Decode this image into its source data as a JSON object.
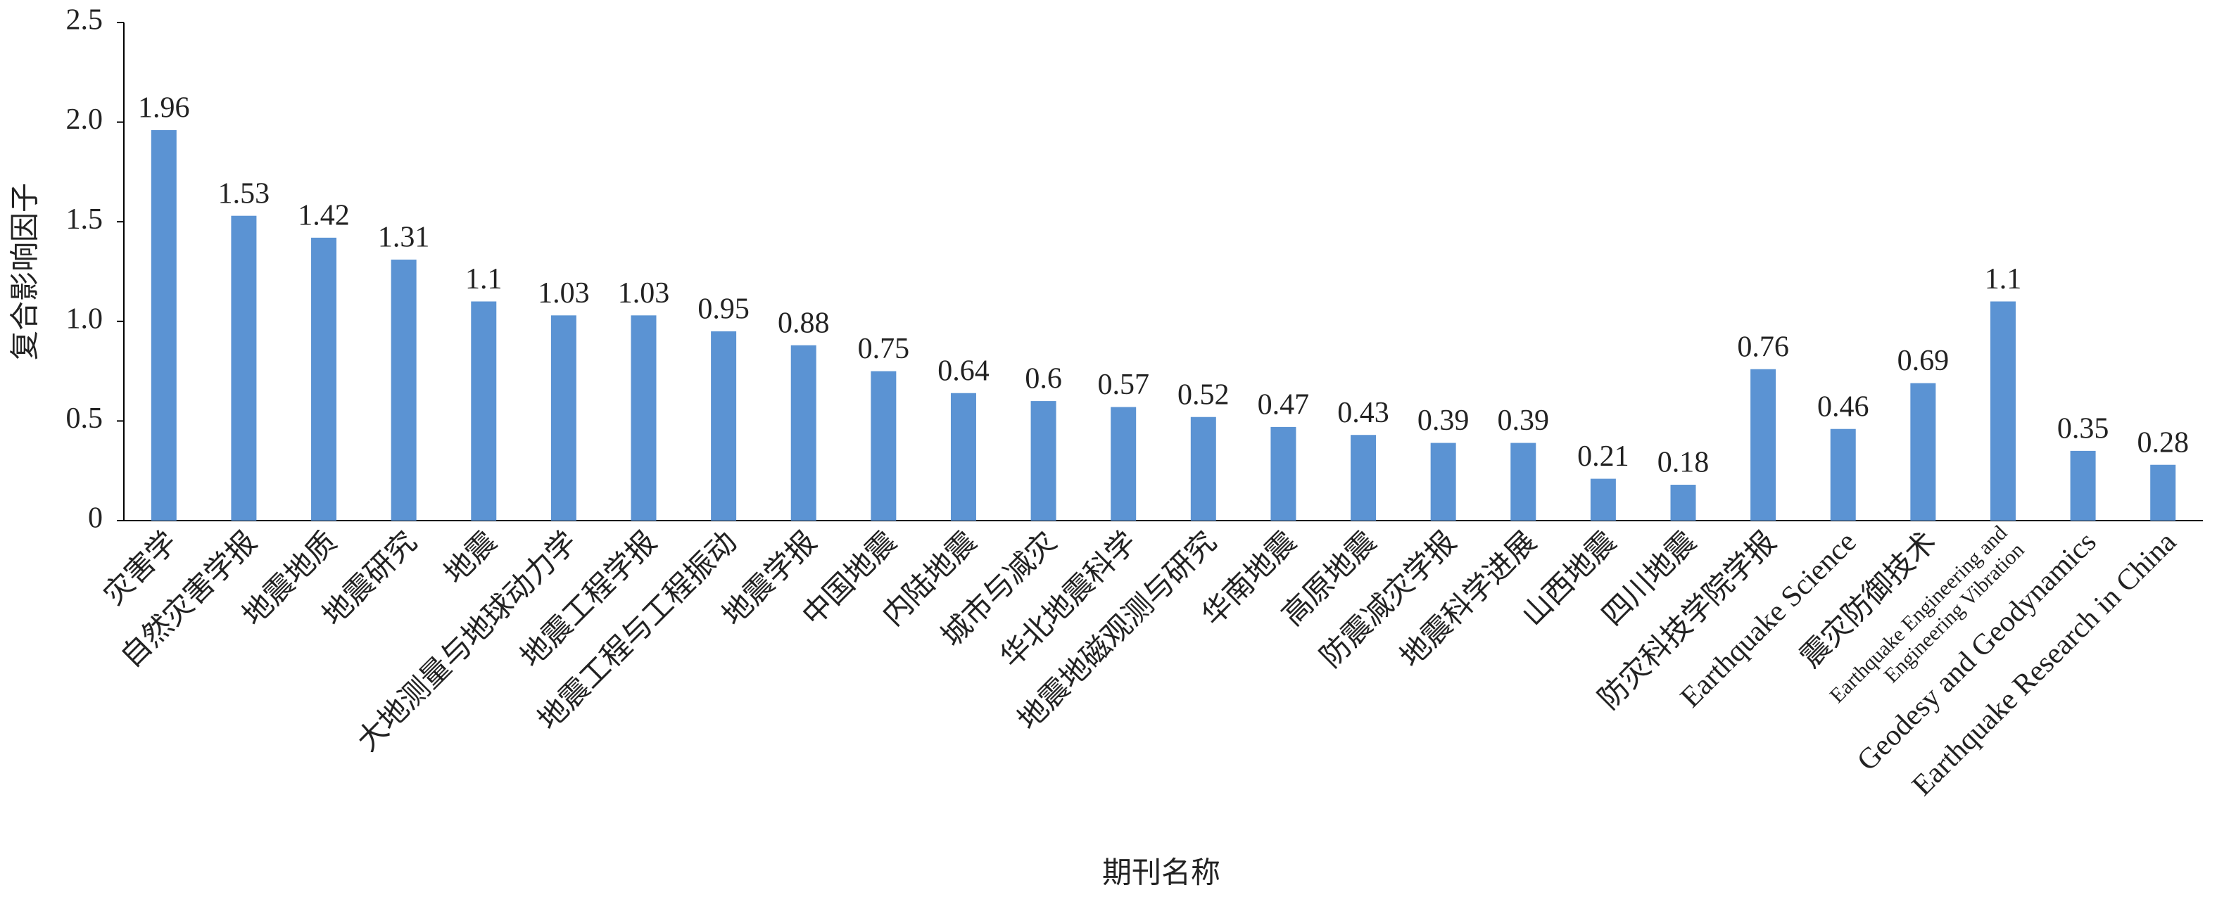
{
  "chart_data": {
    "type": "bar",
    "x_label": "期刊名称",
    "y_label": "复合影响因子",
    "categories": [
      "灾害学",
      "自然灾害学报",
      "地震地质",
      "地震研究",
      "地震",
      "大地测量与地球动力学",
      "地震工程学报",
      "地震工程与工程振动",
      "地震学报",
      "中国地震",
      "内陆地震",
      "城市与减灾",
      "华北地震科学",
      "地震地磁观测与研究",
      "华南地震",
      "高原地震",
      "防震减灾学报",
      "地震科学进展",
      "山西地震",
      "四川地震",
      "防灾科技学院学报",
      "Earthquake Science",
      "震灾防御技术",
      "Earthquake Engineering and\nEngineering Vibration",
      "Geodesy and Geodynamics",
      "Earthquake Research in China"
    ],
    "values": [
      1.96,
      1.53,
      1.42,
      1.31,
      1.1,
      1.03,
      1.03,
      0.95,
      0.88,
      0.75,
      0.64,
      0.6,
      0.57,
      0.52,
      0.47,
      0.43,
      0.39,
      0.39,
      0.21,
      0.18,
      0.76,
      0.46,
      0.69,
      1.1,
      0.35,
      0.28
    ],
    "color": "#5b93d3",
    "ylim": [
      0,
      2.5
    ],
    "yticks": [
      0,
      0.5,
      {
        "value": 1,
        "label": "1.0"
      },
      1.5,
      {
        "value": 2,
        "label": "2.0"
      },
      2.5
    ],
    "grid": false
  }
}
